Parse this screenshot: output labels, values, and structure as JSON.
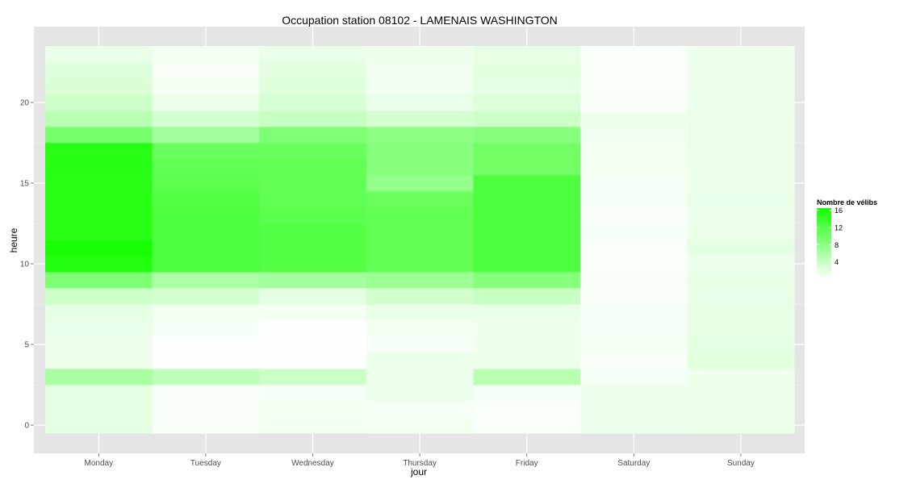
{
  "chart_data": {
    "type": "heatmap",
    "title": "Occupation station 08102 - LAMENAIS WASHINGTON",
    "xlabel": "jour",
    "ylabel": "heure",
    "categories": [
      "Monday",
      "Tuesday",
      "Wednesday",
      "Thursday",
      "Friday",
      "Saturday",
      "Sunday"
    ],
    "y_ticks": [
      0,
      5,
      10,
      15,
      20
    ],
    "ylim": [
      -0.5,
      23.5
    ],
    "hours": [
      0,
      1,
      2,
      3,
      4,
      5,
      6,
      7,
      8,
      9,
      10,
      11,
      12,
      13,
      14,
      15,
      16,
      17,
      18,
      19,
      20,
      21,
      22,
      23
    ],
    "values": [
      [
        1.8,
        1.8,
        1.8,
        6.0,
        1.2,
        1.2,
        1.5,
        1.8,
        3.5,
        9.0,
        15.6,
        16.2,
        15.0,
        15.0,
        15.0,
        15.0,
        15.2,
        15.2,
        9.5,
        5.0,
        3.5,
        2.6,
        2.3,
        1.5
      ],
      [
        0.5,
        0.5,
        0.5,
        4.5,
        0.1,
        0.1,
        0.6,
        0.9,
        3.0,
        6.0,
        12.5,
        12.5,
        12.5,
        12.5,
        12.0,
        11.5,
        11.0,
        10.5,
        6.5,
        3.0,
        1.3,
        0.8,
        0.5,
        0.8
      ],
      [
        1.0,
        0.9,
        0.6,
        3.5,
        0.1,
        0.1,
        0.2,
        0.8,
        1.8,
        6.5,
        12.0,
        12.0,
        12.0,
        11.5,
        11.0,
        11.0,
        11.0,
        10.5,
        9.0,
        4.0,
        2.8,
        2.4,
        2.0,
        1.5
      ],
      [
        0.9,
        0.6,
        1.3,
        1.3,
        1.3,
        0.6,
        0.9,
        1.5,
        3.3,
        7.0,
        11.0,
        11.0,
        11.0,
        11.0,
        10.5,
        7.5,
        8.5,
        8.5,
        8.0,
        3.0,
        1.5,
        1.0,
        1.0,
        1.2
      ],
      [
        0.4,
        0.4,
        0.6,
        5.0,
        1.2,
        1.2,
        1.2,
        1.5,
        4.0,
        8.5,
        12.5,
        12.5,
        12.5,
        12.5,
        12.5,
        12.5,
        10.0,
        10.0,
        8.5,
        3.5,
        2.5,
        1.8,
        2.0,
        1.7
      ],
      [
        1.1,
        1.1,
        1.1,
        0.6,
        0.5,
        0.7,
        0.6,
        0.6,
        0.5,
        0.5,
        0.4,
        0.4,
        0.6,
        0.5,
        0.6,
        0.6,
        0.8,
        0.8,
        1.0,
        1.2,
        0.5,
        0.4,
        0.3,
        0.4
      ],
      [
        1.2,
        1.2,
        1.2,
        1.2,
        2.2,
        1.8,
        1.7,
        1.7,
        1.5,
        1.6,
        1.1,
        1.8,
        1.4,
        1.3,
        1.5,
        1.4,
        1.4,
        1.4,
        1.4,
        1.4,
        1.3,
        1.2,
        1.2,
        1.1
      ]
    ],
    "color_min": "#ffffff",
    "color_max": "#14ff00",
    "value_range": [
      0,
      16.5
    ],
    "legend": {
      "title": "Nombre de vélibs",
      "ticks": [
        4,
        8,
        12,
        16
      ],
      "placement": "right"
    },
    "grid": true,
    "panel_background": "#e5e5e5",
    "gridline_color": "#ffffff",
    "axis_text_color": "#4d4d4d"
  }
}
